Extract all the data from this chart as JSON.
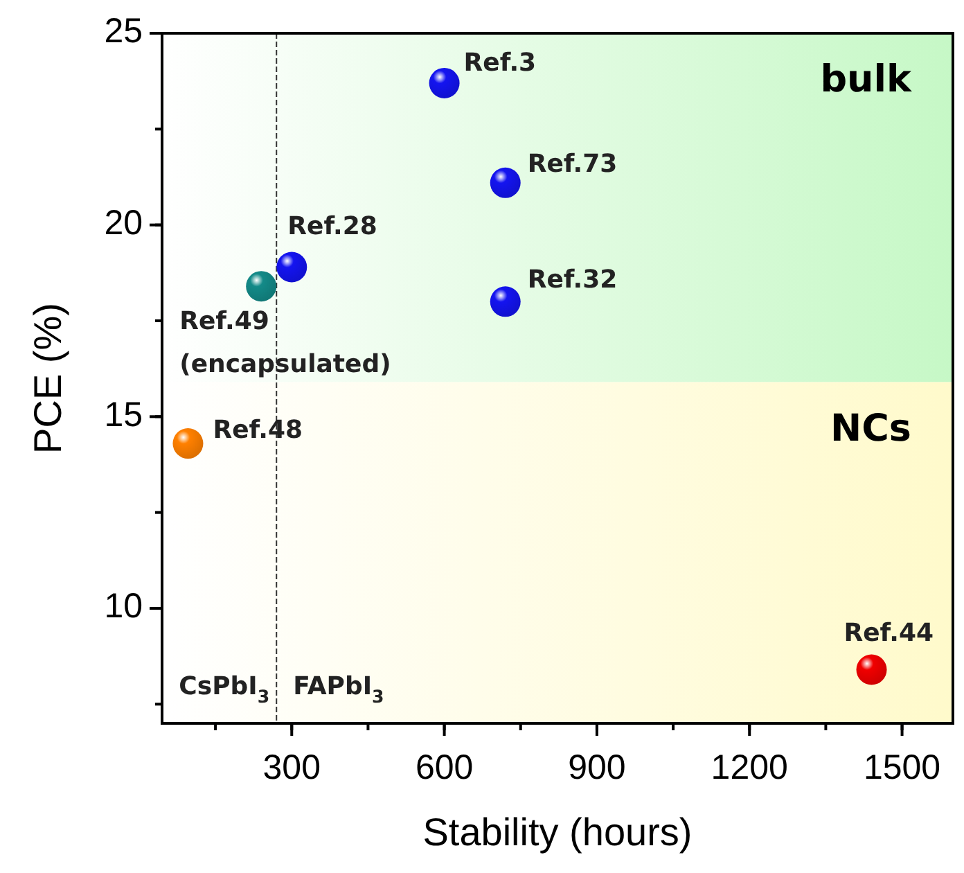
{
  "chart_data": {
    "type": "scatter",
    "xlabel": "Stability (hours)",
    "ylabel": "PCE (%)",
    "xlim": [
      45,
      1600
    ],
    "xticks": [
      300,
      600,
      900,
      1200,
      1500
    ],
    "ylim": [
      7,
      25
    ],
    "yticks": [
      10,
      15,
      20,
      25
    ],
    "marker": "circle",
    "series": [
      {
        "color": "#1414f0",
        "x": [
          300,
          600,
          720,
          720
        ],
        "values": [
          18.9,
          23.7,
          21.1,
          18.0
        ]
      },
      {
        "color": "#138a88",
        "x": [
          240
        ],
        "values": [
          18.4
        ]
      },
      {
        "color": "#ff8000",
        "x": [
          96
        ],
        "values": [
          14.3
        ]
      },
      {
        "color": "#f00000",
        "x": [
          1440
        ],
        "values": [
          8.4
        ]
      }
    ],
    "bands": [
      {
        "axis": "y",
        "from": 15.9,
        "to": 25,
        "label": "bulk",
        "color": "#c6f8c6"
      },
      {
        "axis": "y",
        "from": 7,
        "to": 15.9,
        "label": "NCs",
        "color": "#fffacb"
      }
    ],
    "ref_lines": [
      {
        "axis": "x",
        "value": 270,
        "line_style": "dashed"
      }
    ],
    "annotations": [
      {
        "text": "Ref.3",
        "x": 600,
        "y": 23.7
      },
      {
        "text": "Ref.73",
        "x": 720,
        "y": 21.1
      },
      {
        "text": "Ref.32",
        "x": 720,
        "y": 18.0
      },
      {
        "text": "Ref.28",
        "x": 300,
        "y": 18.9
      },
      {
        "text": "Ref.49\n(encapsulated)",
        "x": 240,
        "y": 18.4
      },
      {
        "text": "Ref.48",
        "x": 96,
        "y": 14.3
      },
      {
        "text": "Ref.44",
        "x": 1440,
        "y": 8.4
      },
      "CsPbI$_{3}$",
      "FAPbI$_{3}$"
    ]
  }
}
